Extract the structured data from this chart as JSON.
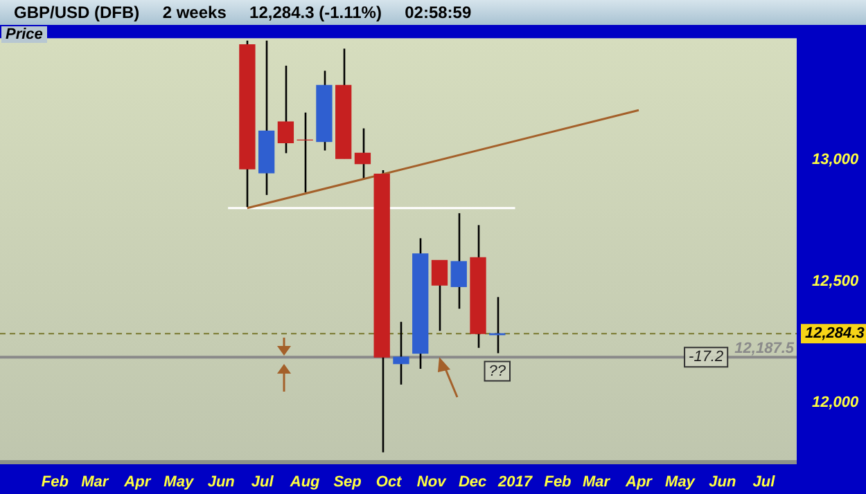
{
  "chart_data": {
    "type": "candlestick",
    "title": "GBP/USD (DFB)     2 weeks     12,284.3 (-1.11%)     02:58:59",
    "ylabel": "Price",
    "x": [
      "2016-06-20",
      "2016-07-04",
      "2016-07-18",
      "2016-08-01",
      "2016-08-15",
      "2016-08-29",
      "2016-09-12",
      "2016-09-26",
      "2016-10-10",
      "2016-10-24",
      "2016-11-07",
      "2016-11-21",
      "2016-12-05",
      "2016-12-19"
    ],
    "ohlc": [
      [
        13473,
        13490,
        12801,
        12962
      ],
      [
        12946,
        13490,
        12855,
        13118
      ],
      [
        13156,
        13387,
        13027,
        13070
      ],
      [
        13081,
        13194,
        12866,
        13081
      ],
      [
        13075,
        13366,
        13038,
        13306
      ],
      [
        13306,
        13457,
        13005,
        13005
      ],
      [
        13027,
        13129,
        12919,
        12984
      ],
      [
        12941,
        12957,
        11796,
        12188
      ],
      [
        12161,
        12333,
        12075,
        12188
      ],
      [
        12204,
        12677,
        12140,
        12613
      ],
      [
        12586,
        12586,
        12296,
        12484
      ],
      [
        12478,
        12780,
        12387,
        12581
      ],
      [
        12597,
        12731,
        12226,
        12285
      ],
      [
        12280,
        12435,
        12204,
        12284.3
      ]
    ],
    "colors": [
      "#c62020",
      "#2f5fd0",
      "#c62020",
      "#c62020",
      "#2f5fd0",
      "#c62020",
      "#c62020",
      "#c62020",
      "#2f5fd0",
      "#2f5fd0",
      "#c62020",
      "#2f5fd0",
      "#c62020",
      "#2f5fd0"
    ],
    "series": [
      {
        "type": "line",
        "color": "#a4602a",
        "x": [
          "2016-06-20",
          "2017-04-01"
        ],
        "values": [
          12801,
          13204
        ]
      },
      {
        "type": "line",
        "color": "#ffffff",
        "x": [
          "2016-06-06",
          "2017-01-01"
        ],
        "values": [
          12801,
          12801
        ]
      }
    ],
    "ref_lines": [
      {
        "axis": "y",
        "value": 12284.3,
        "label": "12,284.3",
        "color": "#7a7a30",
        "line_style": "dashed"
      },
      {
        "axis": "y",
        "value": 12187.5,
        "label": "12,187.5",
        "color": "#8a8a8a",
        "line_style": "solid"
      }
    ],
    "annotations": [
      {
        "text": "-17.2",
        "x": "2017-05-20",
        "y": 12187.5
      },
      {
        "text": "??",
        "x": "2016-12-19",
        "y": 12130
      }
    ],
    "xlim": [
      "2015-12-23",
      "2017-07-25"
    ],
    "xticks": [
      {
        "value": "2016-02-01",
        "label": "Feb"
      },
      {
        "value": "2016-03-01",
        "label": "Mar"
      },
      {
        "value": "2016-04-01",
        "label": "Apr"
      },
      {
        "value": "2016-05-01",
        "label": "May"
      },
      {
        "value": "2016-06-01",
        "label": "Jun"
      },
      {
        "value": "2016-07-01",
        "label": "Jul"
      },
      {
        "value": "2016-08-01",
        "label": "Aug"
      },
      {
        "value": "2016-09-01",
        "label": "Sep"
      },
      {
        "value": "2016-10-01",
        "label": "Oct"
      },
      {
        "value": "2016-11-01",
        "label": "Nov"
      },
      {
        "value": "2016-12-01",
        "label": "Dec"
      },
      {
        "value": "2017-01-01",
        "label": "2017"
      },
      {
        "value": "2017-02-01",
        "label": "Feb"
      },
      {
        "value": "2017-03-01",
        "label": "Mar"
      },
      {
        "value": "2017-04-01",
        "label": "Apr"
      },
      {
        "value": "2017-05-01",
        "label": "May"
      },
      {
        "value": "2017-06-01",
        "label": "Jun"
      },
      {
        "value": "2017-07-01",
        "label": "Jul"
      }
    ],
    "ylim": [
      11750,
      13500
    ],
    "yticks": [
      {
        "value": 12000,
        "label": "12,000"
      },
      {
        "value": 12500,
        "label": "12,500"
      },
      {
        "value": 13000,
        "label": "13,000"
      }
    ]
  }
}
